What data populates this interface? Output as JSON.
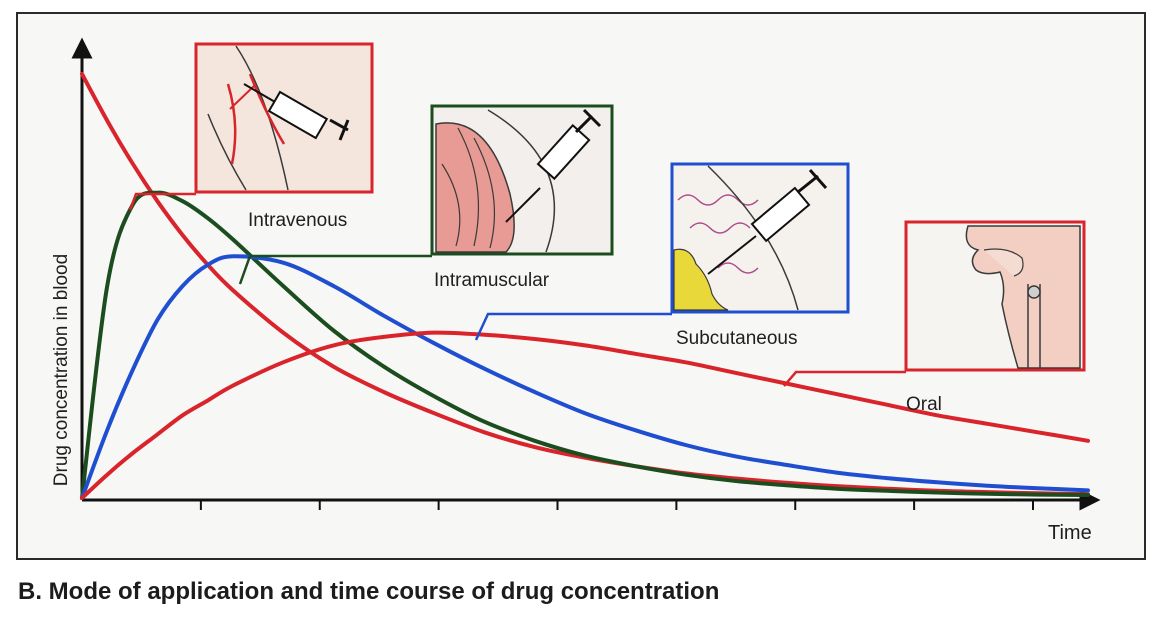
{
  "caption": "B. Mode of application and time course of drug concentration",
  "chart_data": {
    "type": "line",
    "title": "",
    "xlabel": "Time",
    "ylabel": "Drug concentration in blood",
    "xlim": [
      0,
      10
    ],
    "ylim": [
      0,
      10
    ],
    "x_ticks": 8,
    "grid": false,
    "legend": "none",
    "x": [
      0,
      0.25,
      0.5,
      0.75,
      1,
      1.25,
      1.5,
      2,
      2.5,
      3,
      3.5,
      4,
      4.5,
      5,
      5.5,
      6,
      6.5,
      7,
      7.5,
      8,
      8.5,
      9,
      9.5,
      10
    ],
    "series": [
      {
        "name": "Intravenous",
        "color": "#d8242a",
        "values": [
          10.0,
          8.9,
          7.9,
          7.0,
          6.2,
          5.5,
          4.9,
          3.9,
          3.1,
          2.5,
          2.0,
          1.55,
          1.2,
          0.95,
          0.75,
          0.58,
          0.46,
          0.36,
          0.28,
          0.22,
          0.17,
          0.14,
          0.11,
          0.09
        ]
      },
      {
        "name": "Intramuscular",
        "color": "#1b4d1e",
        "values": [
          0.0,
          5.0,
          6.9,
          7.2,
          7.0,
          6.6,
          6.1,
          5.0,
          3.95,
          3.1,
          2.4,
          1.8,
          1.35,
          1.0,
          0.75,
          0.55,
          0.4,
          0.3,
          0.22,
          0.17,
          0.13,
          0.1,
          0.08,
          0.07
        ]
      },
      {
        "name": "Subcutaneous",
        "color": "#1f4fd0",
        "values": [
          0.0,
          1.6,
          3.0,
          4.2,
          5.0,
          5.5,
          5.7,
          5.55,
          5.0,
          4.3,
          3.65,
          3.05,
          2.5,
          2.0,
          1.6,
          1.25,
          0.98,
          0.78,
          0.6,
          0.47,
          0.37,
          0.29,
          0.23,
          0.18
        ]
      },
      {
        "name": "Oral",
        "color": "#d8242a",
        "values": [
          0.0,
          0.55,
          1.05,
          1.5,
          1.95,
          2.3,
          2.65,
          3.2,
          3.6,
          3.8,
          3.9,
          3.85,
          3.75,
          3.6,
          3.4,
          3.2,
          2.95,
          2.7,
          2.45,
          2.2,
          1.95,
          1.75,
          1.55,
          1.35
        ]
      }
    ]
  },
  "insets": [
    {
      "label": "Intravenous",
      "border": "#d8242a",
      "icon": "syringe-vein-icon"
    },
    {
      "label": "Intramuscular",
      "border": "#1b4d1e",
      "icon": "syringe-muscle-icon"
    },
    {
      "label": "Subcutaneous",
      "border": "#1f4fd0",
      "icon": "syringe-skin-icon"
    },
    {
      "label": "Oral",
      "border": "#d8242a",
      "icon": "mouth-throat-icon"
    }
  ]
}
